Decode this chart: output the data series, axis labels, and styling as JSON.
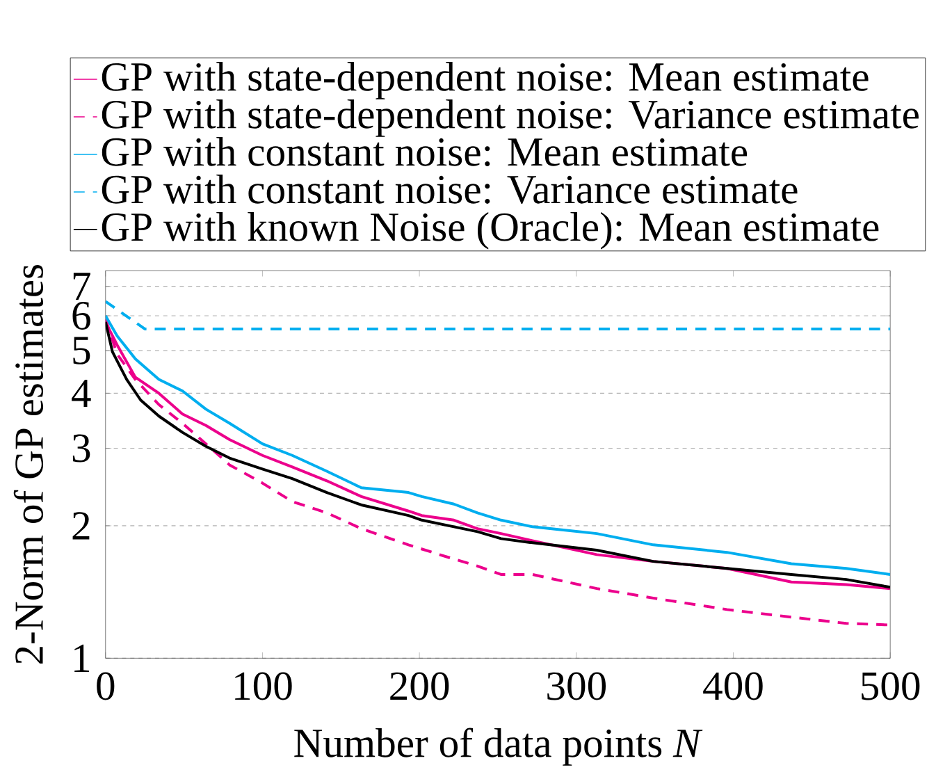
{
  "chart_data": {
    "type": "line",
    "xlabel": "Number of data points *N*",
    "ylabel": "2-Norm of GP estimates",
    "xlim": [
      0,
      500
    ],
    "ylim": [
      1,
      7.6
    ],
    "xticks": [
      0,
      100,
      200,
      300,
      400,
      500
    ],
    "yticks": [
      1,
      2,
      3,
      4,
      5,
      6,
      7
    ],
    "log": "y",
    "grid": "y",
    "legend": "top",
    "series": [
      {
        "name": "GP with state-dependent noise: Mean estimate",
        "color": "#ec008c",
        "line_style": "solid",
        "x": [
          0,
          7.4,
          19,
          34,
          49,
          64,
          79,
          100,
          119,
          141,
          163,
          193,
          201.5,
          222,
          237,
          252,
          272,
          313,
          349,
          396,
          437,
          472,
          500
        ],
        "values": [
          5.8,
          5.15,
          4.35,
          4.0,
          3.59,
          3.38,
          3.14,
          2.89,
          2.72,
          2.53,
          2.33,
          2.16,
          2.11,
          2.06,
          1.97,
          1.92,
          1.85,
          1.72,
          1.66,
          1.6,
          1.49,
          1.47,
          1.44
        ]
      },
      {
        "name": "GP with state-dependent noise: Variance estimate",
        "color": "#ec008c",
        "line_style": "dashed",
        "x": [
          0,
          7.4,
          19,
          34,
          49,
          64,
          79,
          100,
          119,
          141,
          163,
          193,
          222,
          237,
          252,
          272,
          313,
          349,
          396,
          437,
          472,
          500
        ],
        "values": [
          5.9,
          4.91,
          4.3,
          3.77,
          3.42,
          3.07,
          2.75,
          2.5,
          2.27,
          2.14,
          1.97,
          1.81,
          1.68,
          1.62,
          1.55,
          1.55,
          1.44,
          1.37,
          1.29,
          1.24,
          1.2,
          1.19
        ]
      },
      {
        "name": "GP with constant noise: Mean estimate",
        "color": "#00aeef",
        "line_style": "solid",
        "x": [
          0,
          7.4,
          19,
          34,
          49,
          64,
          79,
          100,
          119,
          141,
          163,
          193,
          201.5,
          222,
          237,
          252,
          272,
          313,
          349,
          396,
          437,
          472,
          500
        ],
        "values": [
          6.0,
          5.4,
          4.79,
          4.3,
          4.05,
          3.68,
          3.42,
          3.07,
          2.89,
          2.66,
          2.44,
          2.38,
          2.33,
          2.24,
          2.14,
          2.06,
          1.99,
          1.92,
          1.81,
          1.74,
          1.64,
          1.6,
          1.55
        ]
      },
      {
        "name": "GP with constant noise: Variance estimate",
        "color": "#00aeef",
        "line_style": "dashed",
        "x": [
          0,
          25,
          100,
          200,
          300,
          400,
          500
        ],
        "values": [
          6.47,
          5.6,
          5.6,
          5.6,
          5.6,
          5.6,
          5.6
        ]
      },
      {
        "name": "GP with known Noise (Oracle): Mean estimate",
        "color": "#000000",
        "line_style": "solid",
        "x": [
          0,
          4.4,
          13.5,
          22.4,
          34,
          49,
          64,
          79,
          100,
          119,
          141,
          163,
          193,
          201.5,
          222,
          237,
          252,
          272,
          313,
          349,
          396,
          437,
          472,
          500
        ],
        "values": [
          5.81,
          4.97,
          4.3,
          3.86,
          3.55,
          3.26,
          3.03,
          2.85,
          2.69,
          2.56,
          2.38,
          2.23,
          2.11,
          2.06,
          1.99,
          1.94,
          1.87,
          1.83,
          1.76,
          1.66,
          1.6,
          1.55,
          1.51,
          1.45
        ]
      }
    ]
  }
}
